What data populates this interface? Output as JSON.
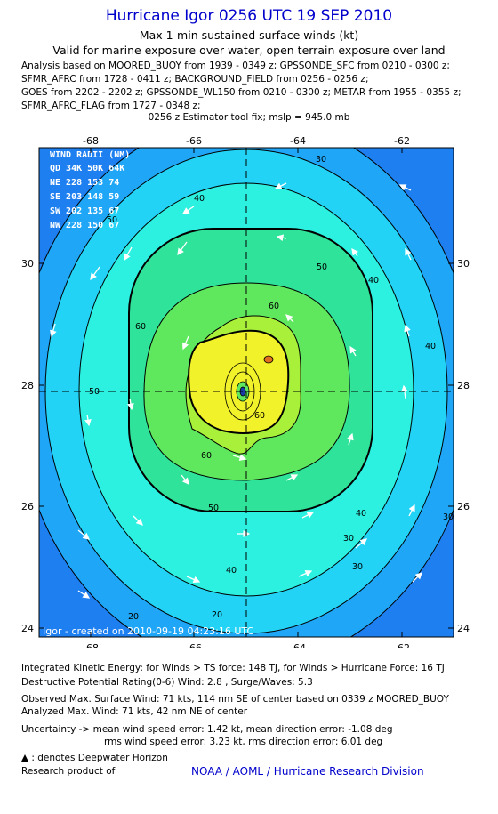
{
  "header": {
    "title": "Hurricane Igor 0256 UTC 19 SEP 2010",
    "subtitle1": "Max 1-min sustained surface winds (kt)",
    "subtitle2": "Valid for marine exposure over water, open terrain exposure over land",
    "analysis": [
      "Analysis based on MOORED_BUOY from 1939 - 0349 z; GPSSONDE_SFC from 0210 - 0300 z;",
      "SFMR_AFRC from 1728 - 0411 z; BACKGROUND_FIELD from 0256 - 0256 z;",
      "GOES from 2202 - 2202 z; GPSSONDE_WL150 from 0210 - 0300 z; METAR from 1955 - 0355 z;",
      "SFMR_AFRC_FLAG from 1727 - 0348 z;"
    ],
    "fix": "0256 z Estimator tool fix; mslp = 945.0 mb"
  },
  "map": {
    "lon_labels": [
      "-68",
      "-66",
      "-64",
      "-62"
    ],
    "lat_labels": [
      "30",
      "28",
      "26",
      "24"
    ],
    "lon_range": [
      -69.2,
      -61.6
    ],
    "lat_range": [
      23.9,
      31.9
    ],
    "center": {
      "lon": -65.1,
      "lat": 27.9
    },
    "contour_levels": [
      "20",
      "30",
      "40",
      "50",
      "60",
      "70"
    ],
    "contour_labels": [
      "30",
      "40",
      "50",
      "60",
      "40",
      "50",
      "60",
      "50",
      "40",
      "30",
      "20",
      "20",
      "30",
      "40",
      "50",
      "60",
      "60",
      "40",
      "30"
    ],
    "created_label": "Igor - created on 2010-09-19 04:23:16 UTC",
    "wind_colors": {
      "lt20": "#1e7ff0",
      "20_30": "#1fa6f7",
      "30_40": "#22d3f5",
      "40_50": "#2cf0e0",
      "50_60": "#2fe39a",
      "60_70": "#5fe85e",
      "70_80": "#a8f03a",
      "80_90": "#f2f22a",
      "core": "#1a3ca8"
    }
  },
  "wind_radii": {
    "title": "WIND RADII (NM)",
    "header": "QD 34K 50K 64K",
    "rows": [
      "NE  228 153  74",
      "SE  203 148  59",
      "SW  202 135  67",
      "NW  228 150  67"
    ]
  },
  "footer": {
    "ike": "Integrated Kinetic Energy:  for Winds > TS force: 148 TJ,  for Winds > Hurricane Force: 16 TJ",
    "dpr": "Destructive Potential Rating(0-6)   Wind: 2.8 , Surge/Waves: 5.3",
    "observed": "Observed Max. Surface Wind: 71 kts, 114 nm SE of center based on 0339 z MOORED_BUOY",
    "analyzed": "Analyzed Max. Wind: 71 kts, 42 nm NE of center",
    "unc1": "Uncertainty -> mean wind speed error: 1.42 kt,   mean direction error:  -1.08 deg",
    "unc2": "rms wind speed error: 3.23 kt,   rms direction error: 6.01 deg",
    "dwh": ": denotes Deepwater Horizon",
    "research": "Research product of",
    "credit": "NOAA / AOML / Hurricane Research Division"
  }
}
